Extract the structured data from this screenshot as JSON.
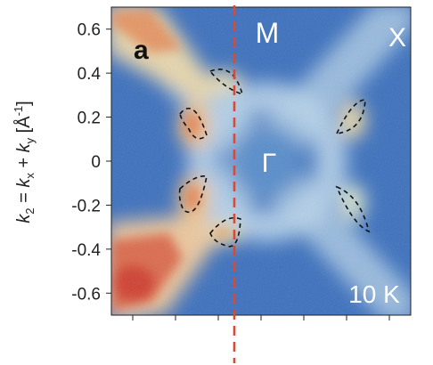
{
  "chart_data": {
    "type": "heatmap",
    "panel_letter": "a",
    "ylabel_parts": {
      "k2_main": "k",
      "k2_sub": "2",
      "eq": " = ",
      "kx_main": "k",
      "kx_sub": "x",
      "plus": " + ",
      "ky_main": "k",
      "ky_sub": "y",
      "unit_open": " [Å",
      "unit_exp": "-1",
      "unit_close": "]"
    },
    "y_ticks": [
      "0.6",
      "0.4",
      "0.2",
      "0",
      "-0.2",
      "-0.4",
      "-0.6"
    ],
    "y_tick_values": [
      0.6,
      0.4,
      0.2,
      0,
      -0.2,
      -0.4,
      -0.6
    ],
    "ylim": [
      -0.7,
      0.7
    ],
    "xlim": [
      -0.7,
      0.7
    ],
    "annotations": {
      "M": "M",
      "X": "X",
      "Gamma": "Γ",
      "temperature": "10 K"
    },
    "colors": {
      "low": "#2e63b5",
      "mid": "#b9d4e8",
      "high": "#d9442f",
      "cut_line": "#d94a33",
      "contour": "#111111"
    }
  }
}
